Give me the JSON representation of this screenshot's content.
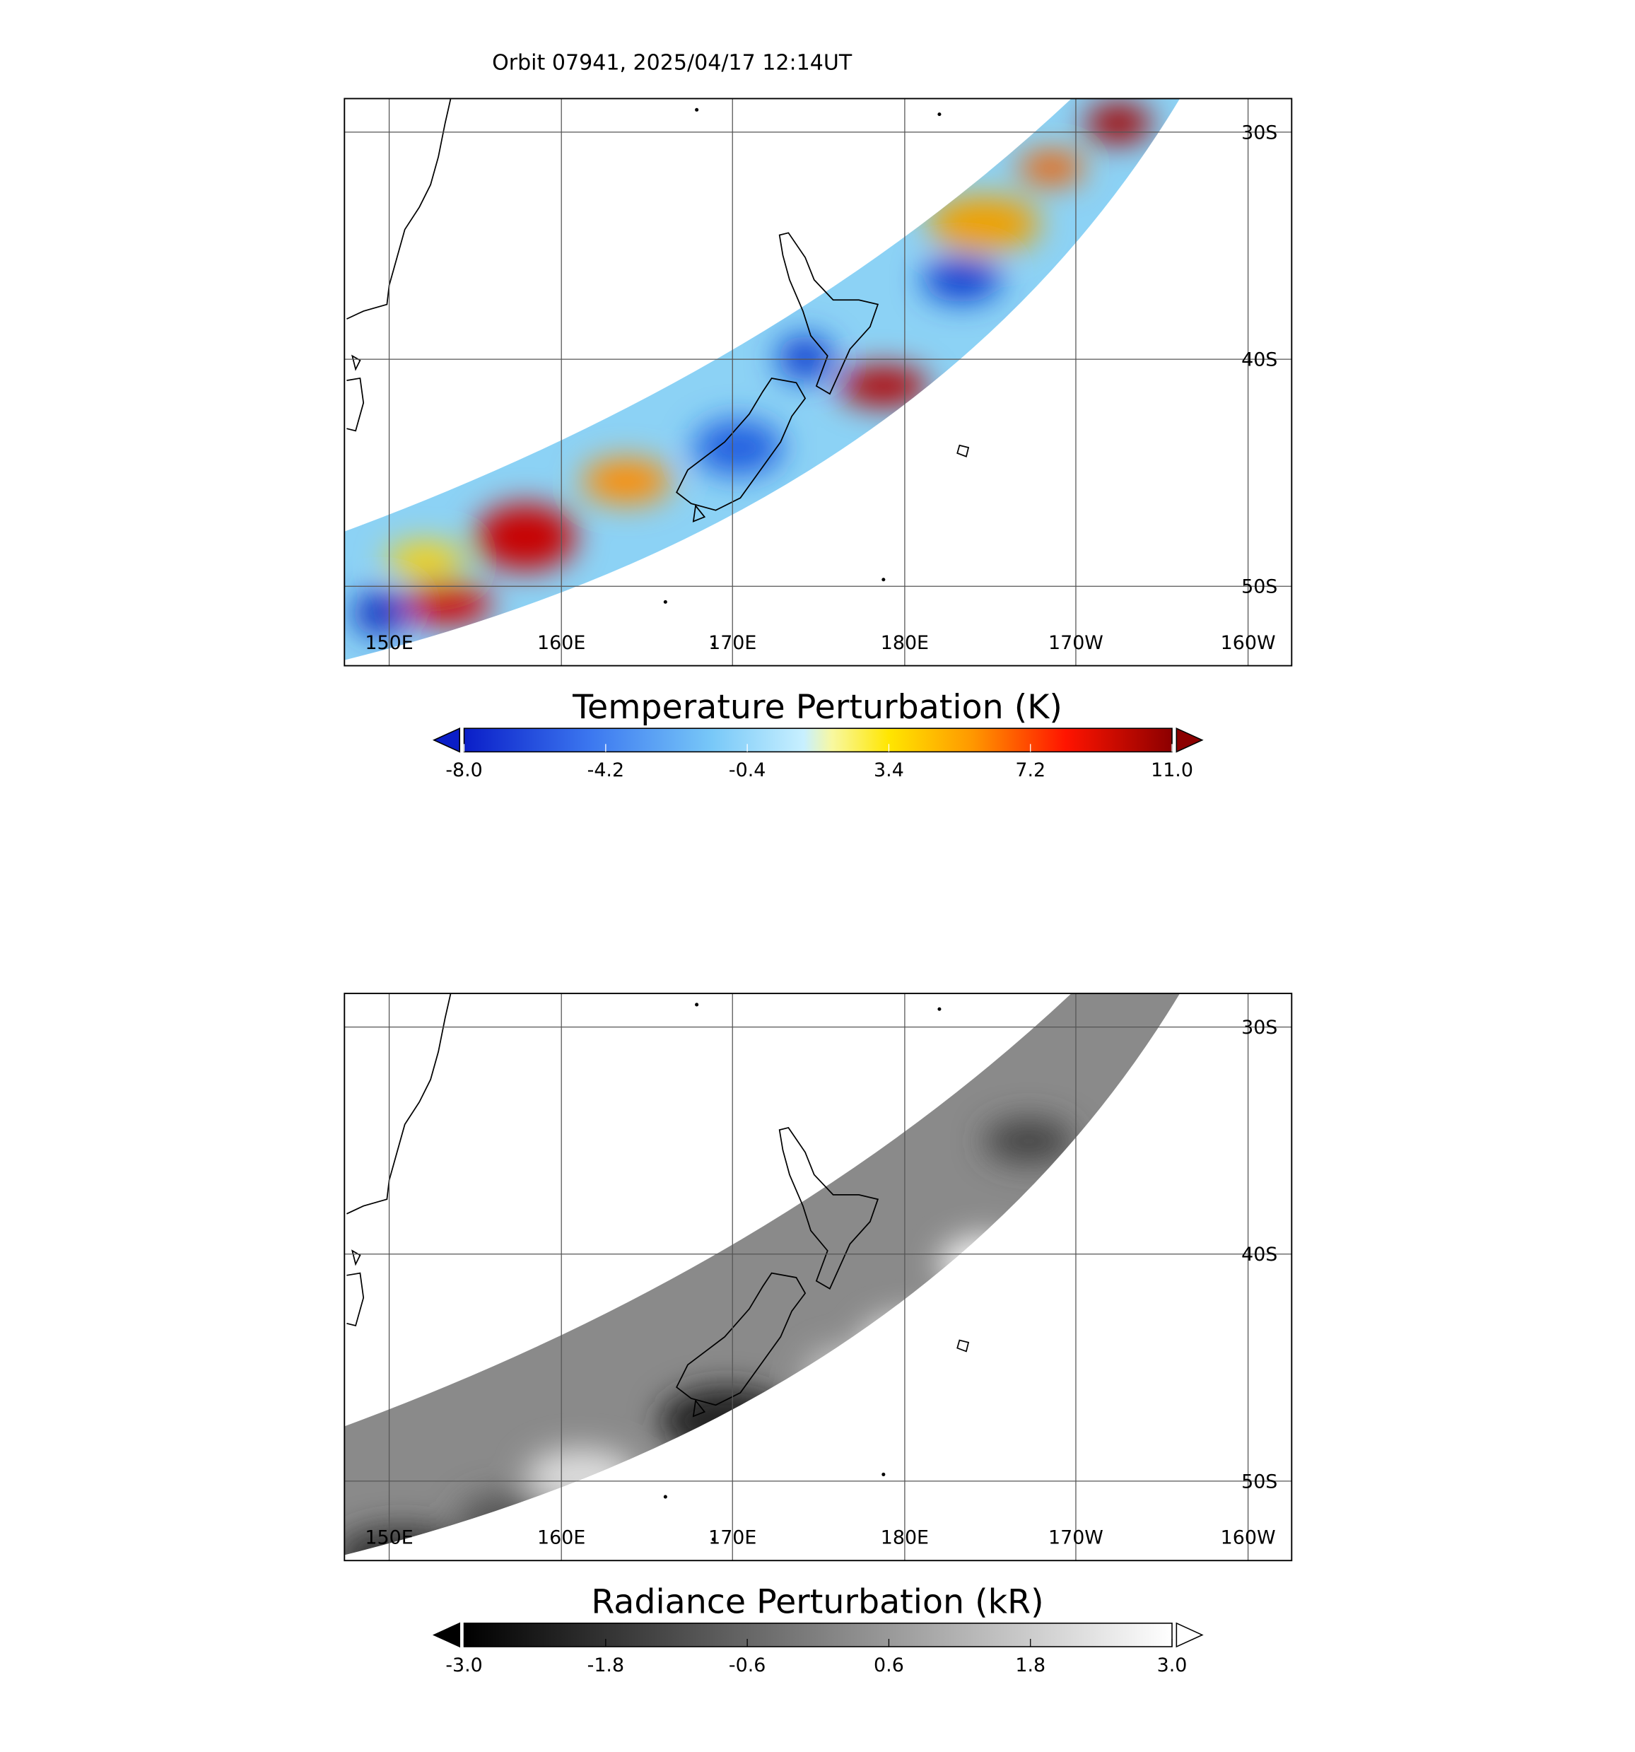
{
  "title": "Orbit 07941, 2025/04/17 12:14UT",
  "panels": [
    {
      "lon_labels": [
        "150E",
        "160E",
        "170E",
        "180E",
        "170W",
        "160W"
      ],
      "lat_labels": [
        "30S",
        "40S",
        "50S"
      ],
      "colorbar": {
        "title": "Temperature Perturbation (K)",
        "tick_labels": [
          "-8.0",
          "-4.2",
          "-0.4",
          "3.4",
          "7.2",
          "11.0"
        ]
      }
    },
    {
      "lon_labels": [
        "150E",
        "160E",
        "170E",
        "180E",
        "170W",
        "160W"
      ],
      "lat_labels": [
        "30S",
        "40S",
        "50S"
      ],
      "colorbar": {
        "title": "Radiance Perturbation (kR)",
        "tick_labels": [
          "-3.0",
          "-1.8",
          "-0.6",
          "0.6",
          "1.8",
          "3.0"
        ]
      }
    }
  ]
}
